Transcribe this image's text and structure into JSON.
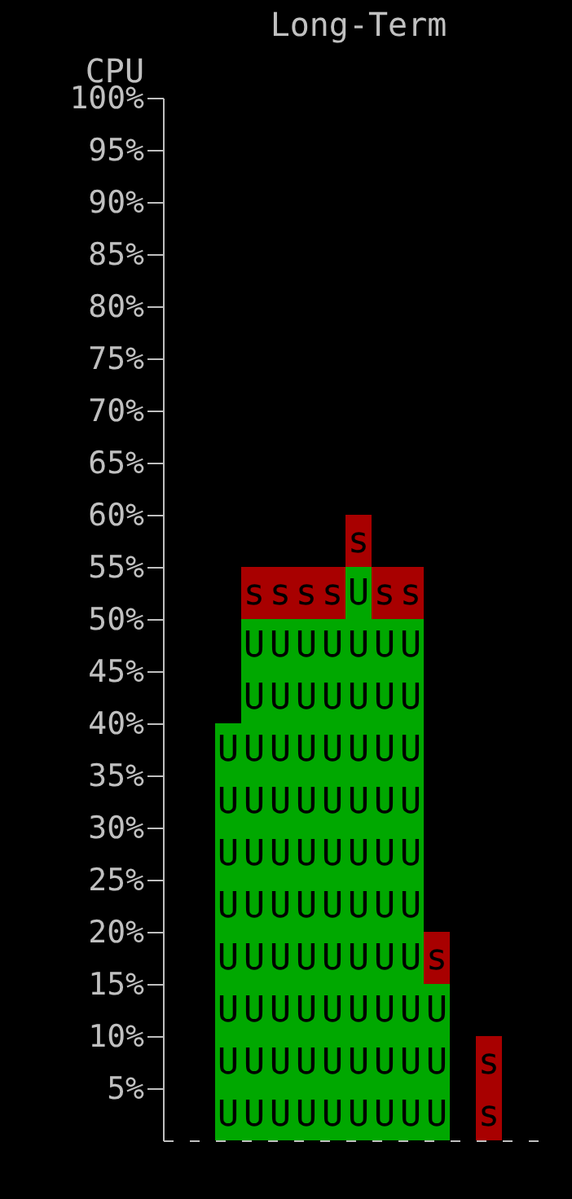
{
  "chart_data": {
    "type": "bar",
    "title": "Long-Term",
    "ylabel": "CPU",
    "stacked": true,
    "categories": [
      null,
      null,
      null,
      null,
      null,
      null,
      null,
      null,
      null,
      null,
      null,
      null,
      null,
      null,
      null
    ],
    "series": [
      {
        "name": "U",
        "color": "#00a800",
        "values": [
          0,
          0,
          40,
          50,
          50,
          50,
          50,
          55,
          50,
          50,
          15,
          0,
          0,
          0,
          0
        ]
      },
      {
        "name": "s",
        "color": "#a80000",
        "values": [
          0,
          0,
          0,
          5,
          5,
          5,
          5,
          5,
          5,
          5,
          5,
          0,
          10,
          0,
          0
        ]
      }
    ],
    "ylim": [
      0,
      100
    ],
    "yticks": [
      {
        "value": 5,
        "label": "5%"
      },
      {
        "value": 10,
        "label": "10%"
      },
      {
        "value": 15,
        "label": "15%"
      },
      {
        "value": 20,
        "label": "20%"
      },
      {
        "value": 25,
        "label": "25%"
      },
      {
        "value": 30,
        "label": "30%"
      },
      {
        "value": 35,
        "label": "35%"
      },
      {
        "value": 40,
        "label": "40%"
      },
      {
        "value": 45,
        "label": "45%"
      },
      {
        "value": 50,
        "label": "50%"
      },
      {
        "value": 55,
        "label": "55%"
      },
      {
        "value": 60,
        "label": "60%"
      },
      {
        "value": 65,
        "label": "65%"
      },
      {
        "value": 70,
        "label": "70%"
      },
      {
        "value": 75,
        "label": "75%"
      },
      {
        "value": 80,
        "label": "80%"
      },
      {
        "value": 85,
        "label": "85%"
      },
      {
        "value": 90,
        "label": "90%"
      },
      {
        "value": 95,
        "label": "95%"
      },
      {
        "value": 100,
        "label": "100%"
      }
    ],
    "grid": false,
    "tick_labels": "y"
  }
}
